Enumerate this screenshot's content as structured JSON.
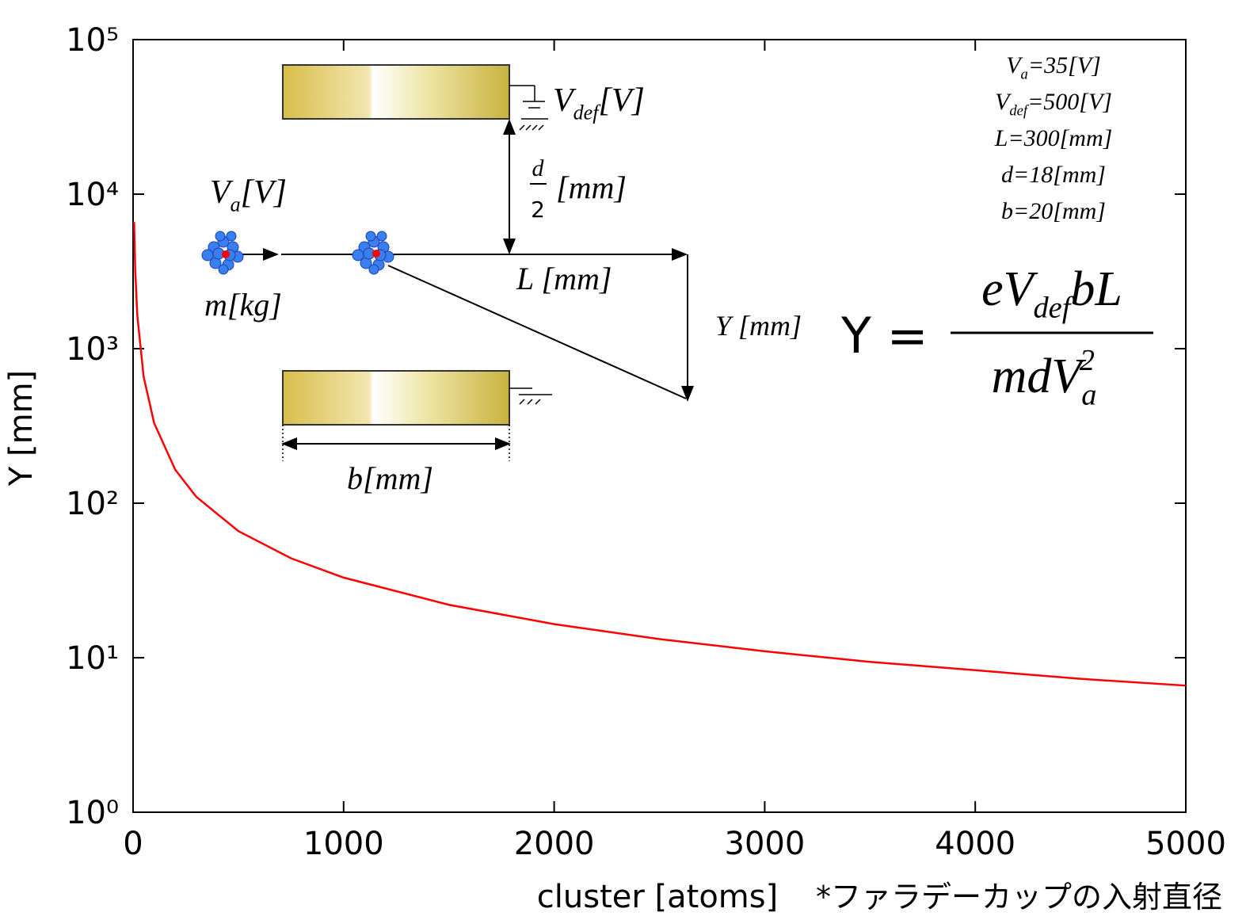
{
  "chart_data": {
    "type": "line",
    "xlabel": "cluster [atoms]",
    "ylabel": "Y [mm]",
    "footnote": "*ファラデーカップの入射直径",
    "x": [
      5,
      10,
      20,
      50,
      100,
      200,
      300,
      500,
      750,
      1000,
      1500,
      2000,
      2500,
      3000,
      3500,
      4000,
      4500,
      5000
    ],
    "values": [
      6600,
      3300,
      1650,
      660,
      330,
      165,
      110,
      66,
      44,
      33,
      22,
      16.5,
      13.2,
      11,
      9.4,
      8.3,
      7.3,
      6.6
    ],
    "color": "#ff0000",
    "xlim": [
      0,
      5000
    ],
    "xticks": [
      0,
      1000,
      2000,
      3000,
      4000,
      5000
    ],
    "ylim": [
      1,
      100000
    ],
    "ylog": true,
    "yticks": [
      {
        "value": 1,
        "label": "10⁰"
      },
      {
        "value": 10,
        "label": "10¹"
      },
      {
        "value": 100,
        "label": "10²"
      },
      {
        "value": 1000,
        "label": "10³"
      },
      {
        "value": 10000,
        "label": "10⁴"
      },
      {
        "value": 100000,
        "label": "10⁵"
      }
    ],
    "annotations": {
      "v_def": [
        "V",
        {
          "sub": "def"
        },
        "[V]"
      ],
      "d_num": "d",
      "d_den": "2",
      "d_unit": "[mm]",
      "v_a": [
        "V",
        {
          "sub": "a"
        },
        "[V]"
      ],
      "m": "m[kg]",
      "L": "L [mm]",
      "Y": "Y [mm]",
      "b": "b[mm]",
      "formula_lhs": "Y =",
      "formula_num": [
        "eV",
        {
          "sub": "def"
        },
        "bL"
      ],
      "formula_den": [
        "mdV",
        {
          "sub": "a"
        },
        {
          "sup": "2"
        }
      ],
      "parameters": [
        [
          "V",
          {
            "sub": "a"
          },
          "=35[V]"
        ],
        [
          "V",
          {
            "sub": "def"
          },
          "=500[V]"
        ],
        [
          "L=300[mm]"
        ],
        [
          "d=18[mm]"
        ],
        [
          "b=20[mm]"
        ]
      ]
    }
  }
}
